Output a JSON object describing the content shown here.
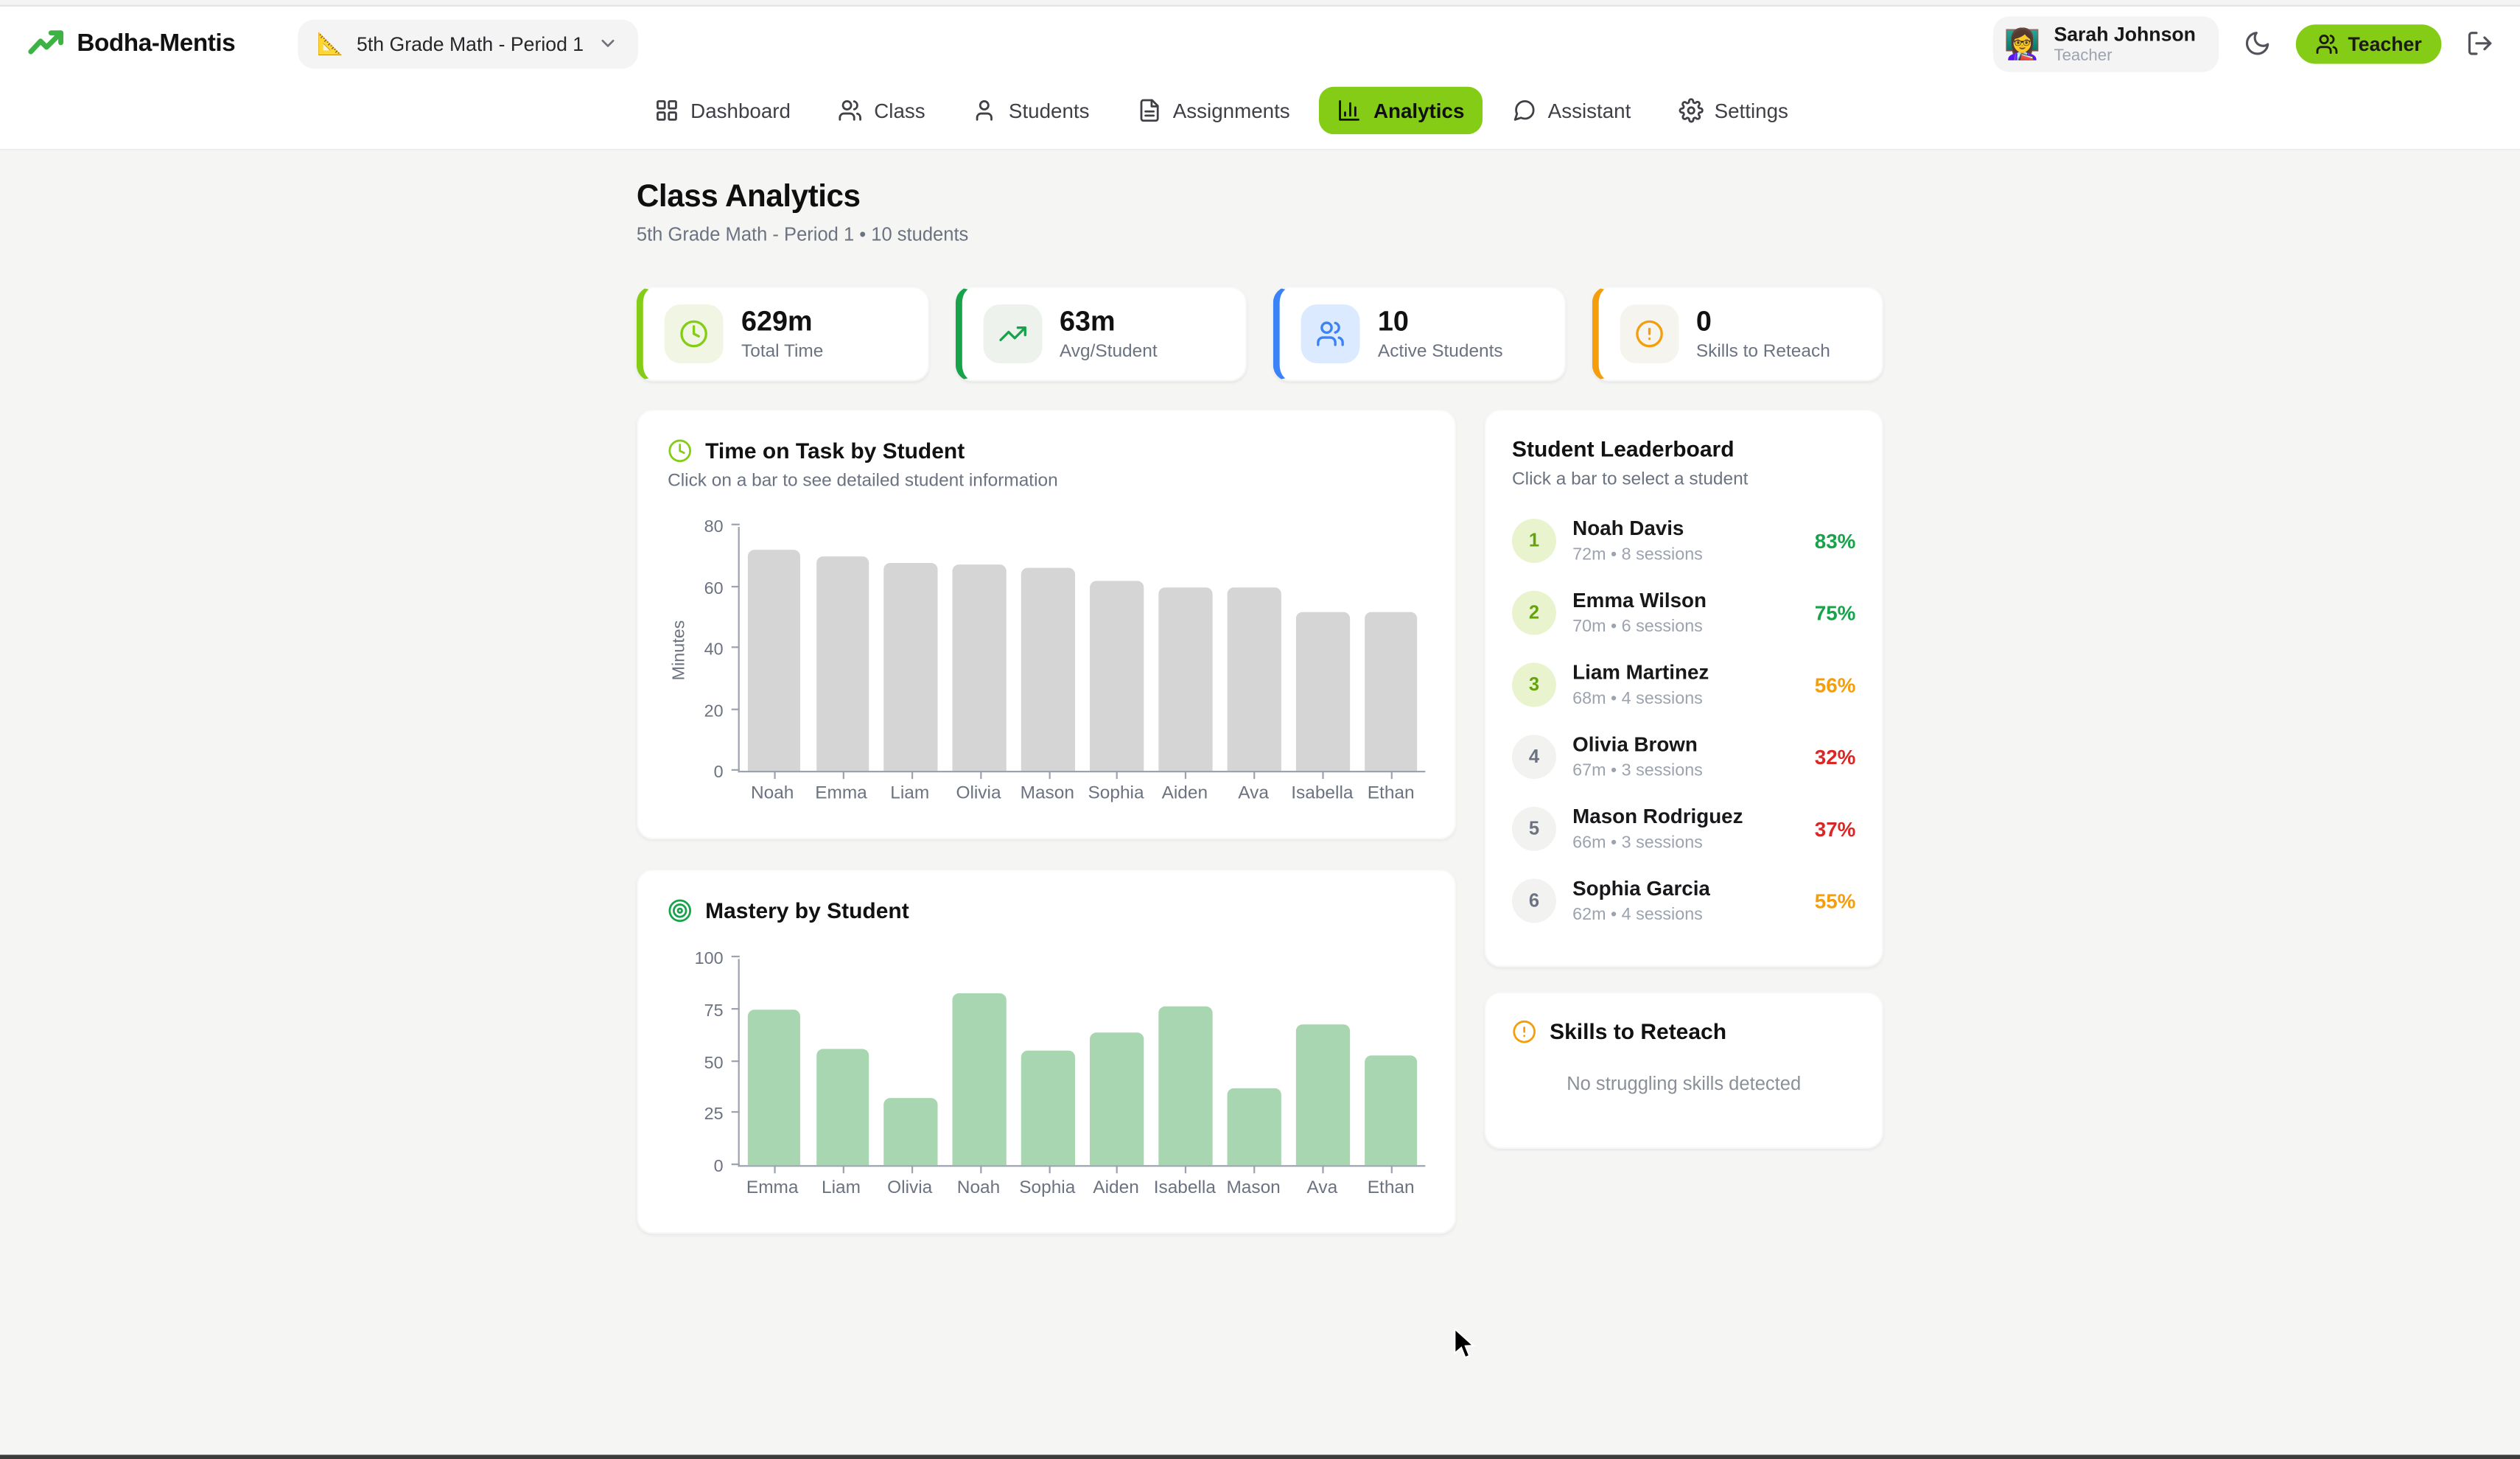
{
  "app": {
    "brand": "Bodha-Mentis",
    "class_selector": {
      "emoji": "📐",
      "label": "5th Grade Math - Period 1"
    },
    "user": {
      "avatar_emoji": "👩‍🏫",
      "name": "Sarah Johnson",
      "role": "Teacher"
    },
    "role_badge": "Teacher",
    "accent_color": "#84cc16"
  },
  "nav": {
    "items": [
      {
        "label": "Dashboard",
        "icon": "dashboard-grid-icon",
        "active": false
      },
      {
        "label": "Class",
        "icon": "users-icon",
        "active": false
      },
      {
        "label": "Students",
        "icon": "user-icon",
        "active": false
      },
      {
        "label": "Assignments",
        "icon": "file-text-icon",
        "active": false
      },
      {
        "label": "Analytics",
        "icon": "bar-chart-icon",
        "active": true
      },
      {
        "label": "Assistant",
        "icon": "chat-bubble-icon",
        "active": false
      },
      {
        "label": "Settings",
        "icon": "gear-icon",
        "active": false
      }
    ]
  },
  "page": {
    "title": "Class Analytics",
    "subtitle": "5th Grade Math - Period 1 • 10 students"
  },
  "stats": {
    "cards": [
      {
        "value": "629m",
        "label": "Total Time",
        "icon": "clock-icon",
        "accent": "#84cc16",
        "tile": "#f1f6e4"
      },
      {
        "value": "63m",
        "label": "Avg/Student",
        "icon": "trending-up-icon",
        "accent": "#16a34a",
        "tile": "#edf3ec"
      },
      {
        "value": "10",
        "label": "Active Students",
        "icon": "users-icon",
        "accent": "#3b82f6",
        "tile": "#dbeafe"
      },
      {
        "value": "0",
        "label": "Skills to Reteach",
        "icon": "alert-circle-icon",
        "accent": "#f59e0b",
        "tile": "#f6f4ee"
      }
    ]
  },
  "chart_data": [
    {
      "type": "bar",
      "title": "Time on Task by Student",
      "title_icon": "clock-icon",
      "title_icon_color": "#84cc16",
      "subtitle": "Click on a bar to see detailed student information",
      "categories": [
        "Noah",
        "Emma",
        "Liam",
        "Olivia",
        "Mason",
        "Sophia",
        "Aiden",
        "Ava",
        "Isabella",
        "Ethan"
      ],
      "values": [
        72,
        70,
        68,
        67,
        66,
        62,
        60,
        60,
        52,
        52
      ],
      "xlabel": "",
      "ylabel": "Minutes",
      "ylim": [
        0,
        80
      ],
      "yticks": [
        0,
        20,
        40,
        60,
        80
      ],
      "grid": false,
      "legend": "none",
      "bar_color": "#d5d5d5"
    },
    {
      "type": "bar",
      "title": "Mastery by Student",
      "title_icon": "target-icon",
      "title_icon_color": "#16a34a",
      "subtitle": "",
      "categories": [
        "Emma",
        "Liam",
        "Olivia",
        "Noah",
        "Sophia",
        "Aiden",
        "Isabella",
        "Mason",
        "Ava",
        "Ethan"
      ],
      "values": [
        75,
        56,
        32,
        83,
        55,
        64,
        76,
        37,
        68,
        53
      ],
      "xlabel": "",
      "ylabel": "",
      "ylim": [
        0,
        100
      ],
      "yticks": [
        0,
        25,
        50,
        75,
        100
      ],
      "grid": false,
      "legend": "none",
      "bar_color": "#a8d6b1"
    }
  ],
  "leaderboard": {
    "title": "Student Leaderboard",
    "subtitle": "Click a bar to select a student",
    "rows": [
      {
        "rank": "1",
        "name": "Noah Davis",
        "meta": "72m • 8 sessions",
        "percent": "83%",
        "percent_color": "#16a34a"
      },
      {
        "rank": "2",
        "name": "Emma Wilson",
        "meta": "70m • 6 sessions",
        "percent": "75%",
        "percent_color": "#16a34a"
      },
      {
        "rank": "3",
        "name": "Liam Martinez",
        "meta": "68m • 4 sessions",
        "percent": "56%",
        "percent_color": "#f59e0b"
      },
      {
        "rank": "4",
        "name": "Olivia Brown",
        "meta": "67m • 3 sessions",
        "percent": "32%",
        "percent_color": "#dc2626"
      },
      {
        "rank": "5",
        "name": "Mason Rodriguez",
        "meta": "66m • 3 sessions",
        "percent": "37%",
        "percent_color": "#dc2626"
      },
      {
        "rank": "6",
        "name": "Sophia Garcia",
        "meta": "62m • 4 sessions",
        "percent": "55%",
        "percent_color": "#f59e0b"
      }
    ]
  },
  "skills": {
    "title": "Skills to Reteach",
    "title_icon": "alert-circle-icon",
    "title_icon_color": "#f59e0b",
    "empty_text": "No struggling skills detected"
  }
}
